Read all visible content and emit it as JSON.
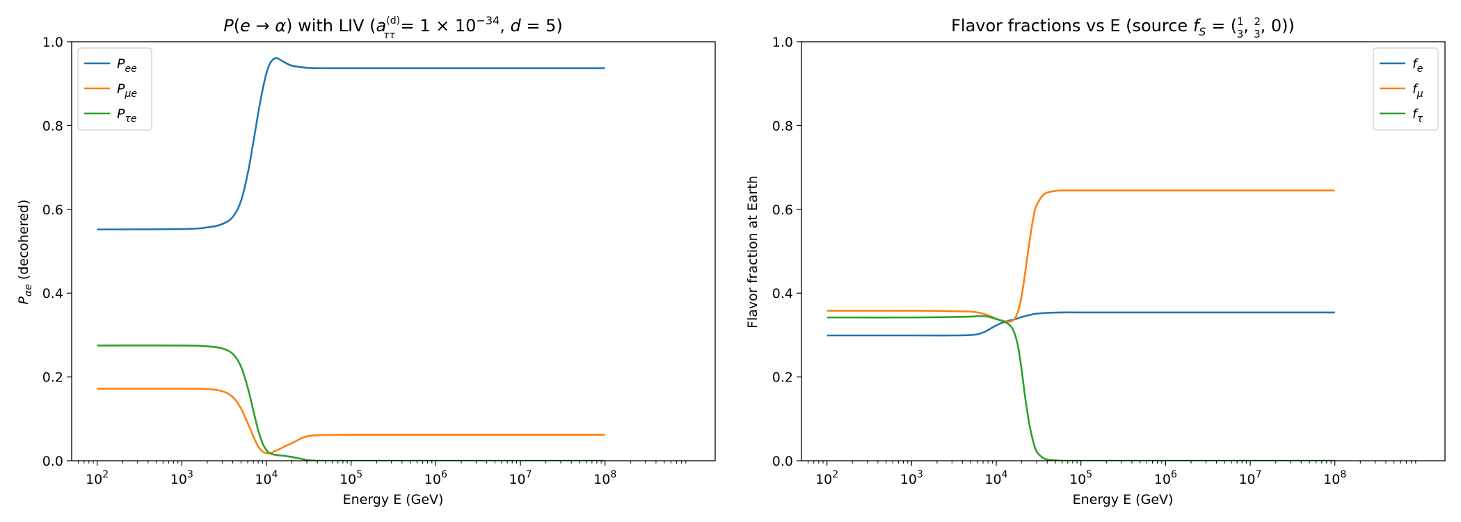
{
  "chart_data": [
    {
      "type": "line",
      "title": "P(e → α) with LIV (a_ττ^(d) = 1 × 10^-34, d = 5)",
      "title_parts": {
        "a": "P",
        "b": "(",
        "c": "e",
        "d": " → ",
        "e": "α",
        "f": ") with LIV (",
        "g": "a",
        "h": "(d)",
        "i": "ττ",
        "j": " = 1 × 10",
        "k": "−34",
        "l": ", ",
        "m": "d",
        "n": " = 5)"
      },
      "xlabel": "Energy E (GeV)",
      "ylabel_main": "P",
      "ylabel_sub": "αe",
      "ylabel_rest": "  (decohered)",
      "x_scale": "log",
      "xlim": [
        50,
        2000000000
      ],
      "ylim": [
        0,
        1
      ],
      "x_ticks": [
        100,
        1000,
        10000,
        100000,
        1000000,
        10000000,
        100000000
      ],
      "x_tick_labels": [
        [
          "10",
          "2"
        ],
        [
          "10",
          "3"
        ],
        [
          "10",
          "4"
        ],
        [
          "10",
          "5"
        ],
        [
          "10",
          "6"
        ],
        [
          "10",
          "7"
        ],
        [
          "10",
          "8"
        ]
      ],
      "y_ticks": [
        0,
        0.2,
        0.4,
        0.6,
        0.8,
        1.0
      ],
      "y_tick_labels": [
        "0.0",
        "0.2",
        "0.4",
        "0.6",
        "0.8",
        "1.0"
      ],
      "legend_position": "top-left",
      "grid": false,
      "series": [
        {
          "name": "P_ee",
          "name_main": "P",
          "name_sub": "ee",
          "color": "#1f77b4",
          "x": [
            100,
            1000,
            2000,
            3000,
            4000,
            5000,
            6000,
            7000,
            8000,
            9000,
            10000,
            11000,
            12000,
            13000,
            14000,
            16000,
            20000,
            30000,
            50000,
            100000,
            1000000,
            10000000,
            100000000
          ],
          "y": [
            0.552,
            0.553,
            0.557,
            0.565,
            0.582,
            0.62,
            0.685,
            0.76,
            0.83,
            0.885,
            0.925,
            0.948,
            0.958,
            0.961,
            0.959,
            0.952,
            0.943,
            0.938,
            0.937,
            0.937,
            0.937,
            0.937,
            0.937
          ]
        },
        {
          "name": "P_μe",
          "name_main": "P",
          "name_sub": "μe",
          "color": "#ff7f0e",
          "x": [
            100,
            1000,
            2000,
            3000,
            4000,
            5000,
            6000,
            7000,
            8000,
            9000,
            10000,
            11000,
            12000,
            14000,
            16000,
            20000,
            25000,
            30000,
            40000,
            100000,
            1000000,
            10000000,
            100000000
          ],
          "y": [
            0.172,
            0.172,
            0.171,
            0.166,
            0.152,
            0.125,
            0.09,
            0.058,
            0.034,
            0.022,
            0.018,
            0.018,
            0.021,
            0.027,
            0.033,
            0.042,
            0.052,
            0.058,
            0.061,
            0.062,
            0.062,
            0.062,
            0.062
          ]
        },
        {
          "name": "P_τe",
          "name_main": "P",
          "name_sub": "τe",
          "color": "#2ca02c",
          "x": [
            100,
            1000,
            2000,
            3000,
            4000,
            5000,
            6000,
            7000,
            8000,
            9000,
            10000,
            11000,
            12000,
            14000,
            16000,
            20000,
            25000,
            30000,
            40000,
            100000,
            1000000,
            10000000,
            100000000
          ],
          "y": [
            0.275,
            0.275,
            0.273,
            0.268,
            0.255,
            0.225,
            0.175,
            0.12,
            0.072,
            0.042,
            0.025,
            0.018,
            0.015,
            0.013,
            0.012,
            0.009,
            0.005,
            0.002,
            0.0,
            0.0,
            0.0,
            0.0,
            0.0
          ]
        }
      ]
    },
    {
      "type": "line",
      "title": "Flavor fractions vs E  (source f_S = (1/3, 2/3, 0))",
      "title_parts": {
        "a": "Flavor fractions vs E  (source ",
        "b": "f",
        "c": "S",
        "d": " = (",
        "e": "1",
        "f": "3",
        "g": ", ",
        "h": "2",
        "i": "3",
        "j": ", 0))"
      },
      "xlabel": "Energy E (GeV)",
      "ylabel": "Flavor fraction at Earth",
      "x_scale": "log",
      "xlim": [
        50,
        2000000000
      ],
      "ylim": [
        0,
        1
      ],
      "x_ticks": [
        100,
        1000,
        10000,
        100000,
        1000000,
        10000000,
        100000000
      ],
      "x_tick_labels": [
        [
          "10",
          "2"
        ],
        [
          "10",
          "3"
        ],
        [
          "10",
          "4"
        ],
        [
          "10",
          "5"
        ],
        [
          "10",
          "6"
        ],
        [
          "10",
          "7"
        ],
        [
          "10",
          "8"
        ]
      ],
      "y_ticks": [
        0,
        0.2,
        0.4,
        0.6,
        0.8,
        1.0
      ],
      "y_tick_labels": [
        "0.0",
        "0.2",
        "0.4",
        "0.6",
        "0.8",
        "1.0"
      ],
      "legend_position": "top-right",
      "grid": false,
      "series": [
        {
          "name": "f_e",
          "name_main": "f",
          "name_sub": "e",
          "color": "#1f77b4",
          "x": [
            100,
            1000,
            3000,
            5000,
            6000,
            7000,
            8000,
            9000,
            10000,
            12000,
            14000,
            16000,
            18000,
            20000,
            25000,
            30000,
            40000,
            60000,
            100000,
            1000000,
            10000000,
            100000000
          ],
          "y": [
            0.299,
            0.299,
            0.299,
            0.3,
            0.302,
            0.306,
            0.312,
            0.318,
            0.323,
            0.33,
            0.334,
            0.337,
            0.34,
            0.343,
            0.348,
            0.351,
            0.353,
            0.354,
            0.354,
            0.354,
            0.354,
            0.354
          ]
        },
        {
          "name": "f_μ",
          "name_main": "f",
          "name_sub": "μ",
          "color": "#ff7f0e",
          "x": [
            100,
            1000,
            3000,
            5000,
            6000,
            7000,
            8000,
            9000,
            10000,
            12000,
            14000,
            16000,
            18000,
            20000,
            22000,
            25000,
            28000,
            30000,
            35000,
            40000,
            50000,
            60000,
            100000,
            1000000,
            10000000,
            100000000
          ],
          "y": [
            0.358,
            0.358,
            0.357,
            0.356,
            0.354,
            0.351,
            0.347,
            0.343,
            0.339,
            0.334,
            0.332,
            0.336,
            0.355,
            0.395,
            0.45,
            0.53,
            0.59,
            0.61,
            0.632,
            0.64,
            0.644,
            0.645,
            0.645,
            0.645,
            0.645,
            0.645
          ]
        },
        {
          "name": "f_τ",
          "name_main": "f",
          "name_sub": "τ",
          "color": "#2ca02c",
          "x": [
            100,
            1000,
            3000,
            5000,
            6000,
            7000,
            8000,
            9000,
            10000,
            12000,
            14000,
            16000,
            18000,
            20000,
            22000,
            25000,
            28000,
            30000,
            35000,
            40000,
            50000,
            60000,
            100000,
            1000000,
            10000000,
            100000000
          ],
          "y": [
            0.342,
            0.342,
            0.343,
            0.344,
            0.345,
            0.345,
            0.344,
            0.341,
            0.338,
            0.333,
            0.326,
            0.31,
            0.275,
            0.215,
            0.15,
            0.08,
            0.038,
            0.022,
            0.008,
            0.003,
            0.001,
            0.0,
            0.0,
            0.0,
            0.0,
            0.0
          ]
        }
      ]
    }
  ]
}
